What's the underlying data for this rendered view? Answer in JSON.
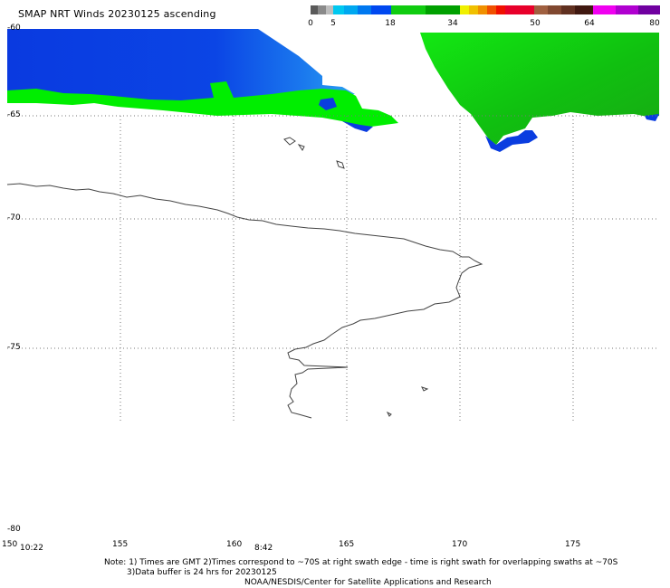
{
  "title": "SMAP NRT Winds 20230125 ascending",
  "colorbar": {
    "labels": [
      "0",
      "5",
      "18",
      "34",
      "50",
      "64",
      "80"
    ]
  },
  "map": {
    "lat_labels": [
      "-60",
      "-65",
      "-70",
      "-75",
      "-80"
    ],
    "lon_labels": [
      "150",
      "155",
      "160",
      "165",
      "170",
      "175"
    ],
    "time_labels": [
      "10:22",
      "8:42"
    ],
    "colors": {
      "calm_blue": "#0a3de0",
      "light_blue": "#2a9cf0",
      "moderate_green": "#00ee00",
      "dark_green": "#17a814",
      "coast": "#444444",
      "grid": "#777777"
    }
  },
  "notes": {
    "line1": "Note: 1) Times are GMT 2)Times correspond to ~70S at right swath edge - time is right swath for overlapping swaths at ~70S",
    "line2": "3)Data buffer is 24 hrs for 20230125",
    "line3": "NOAA/NESDIS/Center for Satellite Applications and Research"
  }
}
